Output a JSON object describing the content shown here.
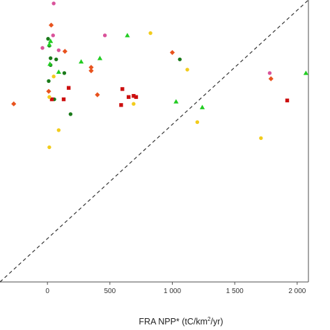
{
  "colors": {
    "dark_green": "#1a7a1a",
    "green": "#22cc22",
    "magenta": "#d9539a",
    "orange": "#e8531e",
    "red": "#cc0f0f",
    "yellow": "#f2cc1c",
    "diagonal": "#333333",
    "frame": "#4d4d4d"
  },
  "chart_data": {
    "type": "scatter",
    "xlabel_main": "FRA  NPP*  (tC/km",
    "xlabel_sup": "2",
    "xlabel_tail": "/yr)",
    "x_ticks": [
      {
        "value": 0,
        "label": "0"
      },
      {
        "value": 500,
        "label": "500"
      },
      {
        "value": 1000,
        "label": "1 000"
      },
      {
        "value": 1500,
        "label": "1 500"
      },
      {
        "value": 2000,
        "label": "2 000"
      }
    ],
    "xlim": [
      -380,
      2090
    ],
    "ylim": [
      -380,
      2090
    ],
    "grid": false,
    "reference_line": "y = x (dashed)",
    "series": [
      {
        "color_key": "dark_green",
        "marker": "circle",
        "points": [
          [
            5,
            1750
          ],
          [
            15,
            1690
          ],
          [
            25,
            1580
          ],
          [
            70,
            1570
          ],
          [
            25,
            1520
          ],
          [
            135,
            1450
          ],
          [
            10,
            1380
          ],
          [
            55,
            1220
          ],
          [
            185,
            1090
          ],
          [
            1060,
            1570
          ]
        ]
      },
      {
        "color_key": "green",
        "marker": "triangle",
        "points": [
          [
            25,
            1730
          ],
          [
            15,
            1700
          ],
          [
            20,
            1530
          ],
          [
            90,
            1460
          ],
          [
            270,
            1550
          ],
          [
            420,
            1580
          ],
          [
            640,
            1780
          ],
          [
            1030,
            1200
          ],
          [
            1240,
            1150
          ],
          [
            2070,
            1450
          ]
        ]
      },
      {
        "color_key": "magenta",
        "marker": "circle",
        "points": [
          [
            50,
            2060
          ],
          [
            45,
            1780
          ],
          [
            90,
            1650
          ],
          [
            -40,
            1670
          ],
          [
            460,
            1780
          ],
          [
            1780,
            1450
          ]
        ]
      },
      {
        "color_key": "orange",
        "marker": "diamond",
        "points": [
          [
            30,
            1870
          ],
          [
            140,
            1640
          ],
          [
            350,
            1470
          ],
          [
            350,
            1500
          ],
          [
            400,
            1260
          ],
          [
            1000,
            1630
          ],
          [
            1790,
            1400
          ],
          [
            10,
            1290
          ],
          [
            -270,
            1180
          ]
        ]
      },
      {
        "color_key": "red",
        "marker": "square",
        "points": [
          [
            130,
            1220
          ],
          [
            170,
            1320
          ],
          [
            35,
            1220
          ],
          [
            590,
            1170
          ],
          [
            600,
            1310
          ],
          [
            650,
            1240
          ],
          [
            690,
            1250
          ],
          [
            710,
            1240
          ],
          [
            1920,
            1210
          ]
        ]
      },
      {
        "color_key": "yellow",
        "marker": "circle",
        "points": [
          [
            825,
            1800
          ],
          [
            1120,
            1480
          ],
          [
            50,
            1420
          ],
          [
            15,
            1240
          ],
          [
            690,
            1180
          ],
          [
            1200,
            1020
          ],
          [
            90,
            950
          ],
          [
            15,
            800
          ],
          [
            1710,
            880
          ]
        ]
      }
    ]
  }
}
